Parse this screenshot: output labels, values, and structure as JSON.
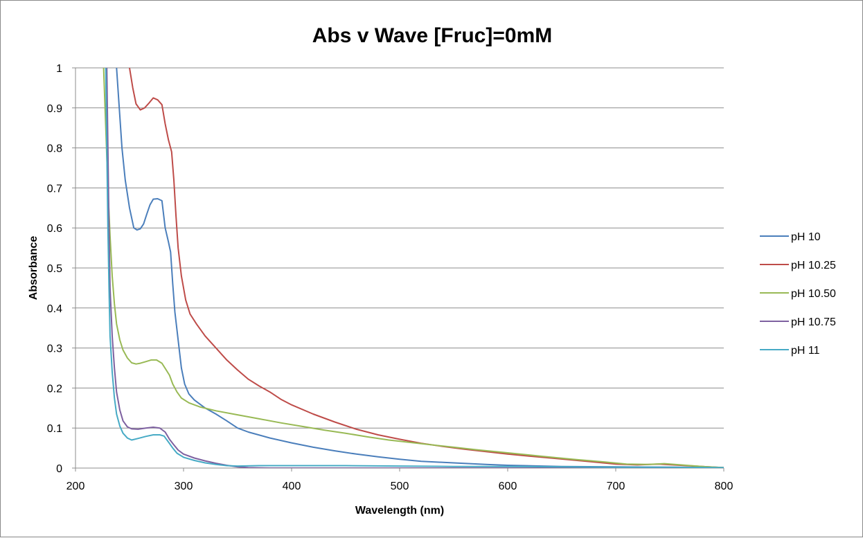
{
  "chart_data": {
    "type": "line",
    "title": "Abs v Wave [Fruc]=0mM",
    "xlabel": "Wavelength (nm)",
    "ylabel": "Absorbance",
    "xlim": [
      200,
      800
    ],
    "ylim": [
      0,
      1
    ],
    "xticks": [
      200,
      300,
      400,
      500,
      600,
      700,
      800
    ],
    "yticks": [
      0,
      0.1,
      0.2,
      0.3,
      0.4,
      0.5,
      0.6,
      0.7,
      0.8,
      0.9,
      1
    ],
    "ytick_labels": [
      "0",
      "0.1",
      "0.2",
      "0.3",
      "0.4",
      "0.5",
      "0.6",
      "0.7",
      "0.8",
      "0.9",
      "1"
    ],
    "grid": true,
    "legend_position": "right",
    "series": [
      {
        "name": "pH 10",
        "color": "#4a7ebb",
        "points": [
          [
            238,
            1.0
          ],
          [
            240,
            0.92
          ],
          [
            243,
            0.8
          ],
          [
            246,
            0.72
          ],
          [
            250,
            0.65
          ],
          [
            254,
            0.6
          ],
          [
            257,
            0.595
          ],
          [
            260,
            0.598
          ],
          [
            263,
            0.61
          ],
          [
            266,
            0.635
          ],
          [
            269,
            0.658
          ],
          [
            272,
            0.672
          ],
          [
            276,
            0.673
          ],
          [
            280,
            0.668
          ],
          [
            283,
            0.6
          ],
          [
            286,
            0.565
          ],
          [
            288,
            0.54
          ],
          [
            290,
            0.46
          ],
          [
            292,
            0.39
          ],
          [
            295,
            0.32
          ],
          [
            298,
            0.25
          ],
          [
            301,
            0.21
          ],
          [
            305,
            0.185
          ],
          [
            310,
            0.17
          ],
          [
            320,
            0.15
          ],
          [
            330,
            0.135
          ],
          [
            340,
            0.118
          ],
          [
            350,
            0.1
          ],
          [
            360,
            0.09
          ],
          [
            380,
            0.075
          ],
          [
            400,
            0.063
          ],
          [
            420,
            0.052
          ],
          [
            440,
            0.043
          ],
          [
            460,
            0.035
          ],
          [
            480,
            0.028
          ],
          [
            500,
            0.022
          ],
          [
            520,
            0.017
          ],
          [
            550,
            0.013
          ],
          [
            580,
            0.009
          ],
          [
            600,
            0.007
          ],
          [
            650,
            0.004
          ],
          [
            700,
            0.003
          ],
          [
            750,
            0.002
          ],
          [
            800,
            0.001
          ]
        ]
      },
      {
        "name": "pH 10.25",
        "color": "#be4b48",
        "points": [
          [
            250,
            1.0
          ],
          [
            253,
            0.95
          ],
          [
            256,
            0.91
          ],
          [
            260,
            0.895
          ],
          [
            264,
            0.9
          ],
          [
            268,
            0.912
          ],
          [
            272,
            0.925
          ],
          [
            276,
            0.92
          ],
          [
            280,
            0.908
          ],
          [
            283,
            0.86
          ],
          [
            286,
            0.82
          ],
          [
            289,
            0.79
          ],
          [
            291,
            0.72
          ],
          [
            293,
            0.63
          ],
          [
            295,
            0.55
          ],
          [
            298,
            0.48
          ],
          [
            302,
            0.42
          ],
          [
            306,
            0.385
          ],
          [
            312,
            0.36
          ],
          [
            320,
            0.33
          ],
          [
            330,
            0.3
          ],
          [
            340,
            0.27
          ],
          [
            350,
            0.245
          ],
          [
            360,
            0.222
          ],
          [
            370,
            0.205
          ],
          [
            380,
            0.19
          ],
          [
            390,
            0.172
          ],
          [
            400,
            0.158
          ],
          [
            420,
            0.135
          ],
          [
            440,
            0.115
          ],
          [
            460,
            0.097
          ],
          [
            480,
            0.083
          ],
          [
            500,
            0.072
          ],
          [
            520,
            0.062
          ],
          [
            540,
            0.054
          ],
          [
            560,
            0.047
          ],
          [
            580,
            0.041
          ],
          [
            600,
            0.035
          ],
          [
            620,
            0.03
          ],
          [
            640,
            0.025
          ],
          [
            660,
            0.02
          ],
          [
            680,
            0.015
          ],
          [
            700,
            0.01
          ],
          [
            720,
            0.008
          ],
          [
            740,
            0.01
          ],
          [
            760,
            0.007
          ],
          [
            780,
            0.004
          ],
          [
            800,
            0.001
          ]
        ]
      },
      {
        "name": "pH 10.50",
        "color": "#98b954",
        "points": [
          [
            226,
            1.0
          ],
          [
            228,
            0.85
          ],
          [
            230,
            0.7
          ],
          [
            232,
            0.58
          ],
          [
            234,
            0.48
          ],
          [
            236,
            0.41
          ],
          [
            238,
            0.36
          ],
          [
            241,
            0.32
          ],
          [
            244,
            0.295
          ],
          [
            248,
            0.275
          ],
          [
            252,
            0.263
          ],
          [
            256,
            0.26
          ],
          [
            260,
            0.262
          ],
          [
            265,
            0.266
          ],
          [
            270,
            0.27
          ],
          [
            275,
            0.27
          ],
          [
            280,
            0.262
          ],
          [
            284,
            0.245
          ],
          [
            287,
            0.232
          ],
          [
            290,
            0.21
          ],
          [
            294,
            0.19
          ],
          [
            298,
            0.175
          ],
          [
            305,
            0.163
          ],
          [
            315,
            0.153
          ],
          [
            330,
            0.143
          ],
          [
            350,
            0.133
          ],
          [
            370,
            0.123
          ],
          [
            390,
            0.113
          ],
          [
            410,
            0.104
          ],
          [
            430,
            0.095
          ],
          [
            450,
            0.087
          ],
          [
            470,
            0.078
          ],
          [
            490,
            0.07
          ],
          [
            510,
            0.064
          ],
          [
            530,
            0.058
          ],
          [
            550,
            0.052
          ],
          [
            570,
            0.046
          ],
          [
            600,
            0.038
          ],
          [
            630,
            0.03
          ],
          [
            660,
            0.022
          ],
          [
            690,
            0.015
          ],
          [
            710,
            0.01
          ],
          [
            730,
            0.009
          ],
          [
            745,
            0.011
          ],
          [
            760,
            0.008
          ],
          [
            780,
            0.004
          ],
          [
            800,
            0.001
          ]
        ]
      },
      {
        "name": "pH 10.75",
        "color": "#7d60a0",
        "points": [
          [
            229,
            1.0
          ],
          [
            230,
            0.8
          ],
          [
            231,
            0.6
          ],
          [
            232,
            0.45
          ],
          [
            234,
            0.33
          ],
          [
            236,
            0.25
          ],
          [
            238,
            0.19
          ],
          [
            241,
            0.145
          ],
          [
            244,
            0.118
          ],
          [
            248,
            0.103
          ],
          [
            252,
            0.098
          ],
          [
            258,
            0.097
          ],
          [
            265,
            0.1
          ],
          [
            272,
            0.102
          ],
          [
            278,
            0.1
          ],
          [
            283,
            0.09
          ],
          [
            287,
            0.072
          ],
          [
            291,
            0.058
          ],
          [
            295,
            0.045
          ],
          [
            300,
            0.035
          ],
          [
            310,
            0.025
          ],
          [
            320,
            0.018
          ],
          [
            330,
            0.012
          ],
          [
            340,
            0.007
          ],
          [
            350,
            0.003
          ],
          [
            360,
            0.001
          ],
          [
            380,
            0.0
          ],
          [
            400,
            0.0
          ],
          [
            500,
            0.0
          ],
          [
            600,
            0.0
          ],
          [
            700,
            0.0
          ],
          [
            800,
            0.0
          ]
        ]
      },
      {
        "name": "pH 11",
        "color": "#46aac5",
        "points": [
          [
            228,
            1.0
          ],
          [
            229,
            0.8
          ],
          [
            230,
            0.6
          ],
          [
            231,
            0.45
          ],
          [
            232,
            0.33
          ],
          [
            234,
            0.24
          ],
          [
            236,
            0.175
          ],
          [
            238,
            0.135
          ],
          [
            241,
            0.105
          ],
          [
            244,
            0.087
          ],
          [
            248,
            0.075
          ],
          [
            252,
            0.07
          ],
          [
            258,
            0.074
          ],
          [
            265,
            0.079
          ],
          [
            272,
            0.083
          ],
          [
            278,
            0.083
          ],
          [
            282,
            0.08
          ],
          [
            286,
            0.065
          ],
          [
            290,
            0.05
          ],
          [
            294,
            0.037
          ],
          [
            300,
            0.027
          ],
          [
            310,
            0.019
          ],
          [
            320,
            0.013
          ],
          [
            330,
            0.009
          ],
          [
            340,
            0.006
          ],
          [
            350,
            0.005
          ],
          [
            370,
            0.006
          ],
          [
            400,
            0.006
          ],
          [
            450,
            0.006
          ],
          [
            500,
            0.005
          ],
          [
            550,
            0.004
          ],
          [
            600,
            0.004
          ],
          [
            650,
            0.003
          ],
          [
            700,
            0.002
          ],
          [
            750,
            0.002
          ],
          [
            800,
            0.001
          ]
        ]
      }
    ]
  }
}
